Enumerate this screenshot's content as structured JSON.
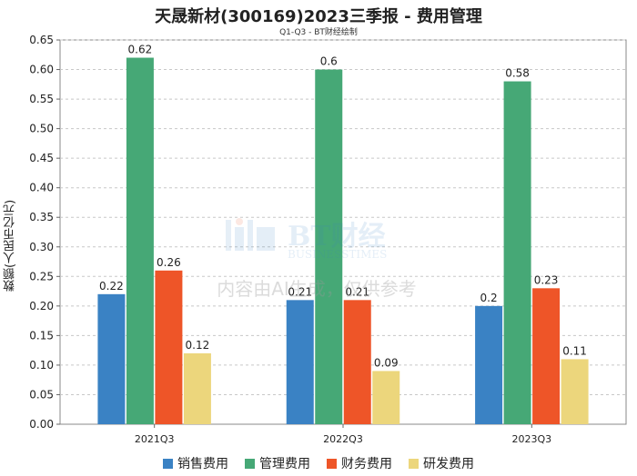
{
  "chart_data": {
    "type": "bar",
    "title": "天晟新材(300169)2023三季报 - 费用管理",
    "subtitle": "Q1-Q3 - BT财经绘制",
    "ylabel": "数额(人民币亿元)",
    "xlabel": "",
    "categories": [
      "2021Q3",
      "2022Q3",
      "2023Q3"
    ],
    "series": [
      {
        "name": "销售费用",
        "values": [
          0.22,
          0.21,
          0.2
        ],
        "color": "#3a82c4"
      },
      {
        "name": "管理费用",
        "values": [
          0.62,
          0.6,
          0.58
        ],
        "color": "#46a876"
      },
      {
        "name": "财务费用",
        "values": [
          0.26,
          0.21,
          0.23
        ],
        "color": "#ee5528"
      },
      {
        "name": "研发费用",
        "values": [
          0.12,
          0.09,
          0.11
        ],
        "color": "#ecd67c"
      }
    ],
    "value_labels": [
      [
        "0.22",
        "0.21",
        "0.2"
      ],
      [
        "0.62",
        "0.6",
        "0.58"
      ],
      [
        "0.26",
        "0.21",
        "0.23"
      ],
      [
        "0.12",
        "0.09",
        "0.11"
      ]
    ],
    "yticks": [
      "0.00",
      "0.05",
      "0.10",
      "0.15",
      "0.20",
      "0.25",
      "0.30",
      "0.35",
      "0.40",
      "0.45",
      "0.50",
      "0.55",
      "0.60",
      "0.65"
    ],
    "ylim": [
      0,
      0.65
    ],
    "grid": true,
    "legend_position": "bottom"
  },
  "watermark": {
    "logo_text": "BT财经",
    "logo_sub": "BUSINESSTIMES",
    "notice": "内容由AI生成，仅供参考"
  }
}
